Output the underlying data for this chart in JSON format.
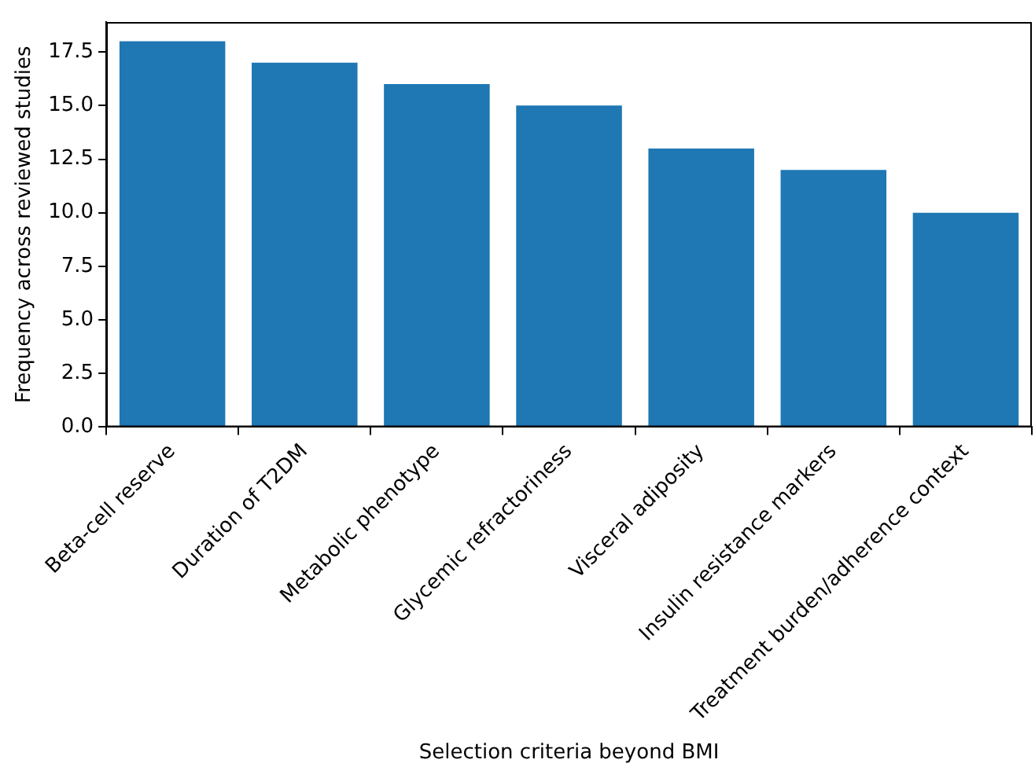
{
  "chart_data": {
    "type": "bar",
    "xlabel": "Selection criteria beyond BMI",
    "ylabel": "Frequency across reviewed studies",
    "categories": [
      "Beta-cell reserve",
      "Duration of T2DM",
      "Metabolic phenotype",
      "Glycemic refractoriness",
      "Visceral adiposity",
      "Insulin resistance markers",
      "Treatment burden/adherence context"
    ],
    "values": [
      18,
      17,
      16,
      15,
      13,
      12,
      10
    ],
    "color": "#1f77b4",
    "ylim": [
      0,
      18.9
    ],
    "yticks": [
      {
        "value": 0,
        "label": "0.0"
      },
      {
        "value": 2.5,
        "label": "2.5"
      },
      {
        "value": 5,
        "label": "5.0"
      },
      {
        "value": 7.5,
        "label": "7.5"
      },
      {
        "value": 10,
        "label": "10.0"
      },
      {
        "value": 12.5,
        "label": "12.5"
      },
      {
        "value": 15,
        "label": "15.0"
      },
      {
        "value": 17.5,
        "label": "17.5"
      }
    ],
    "grid": false,
    "legend": false
  }
}
